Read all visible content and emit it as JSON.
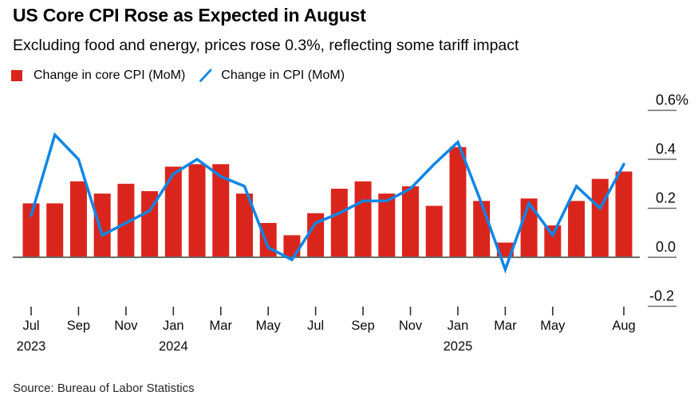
{
  "colors": {
    "bar_red": "#da251d",
    "line_blue": "#0e86e6",
    "zero_axis": "#6a6a6a",
    "y_tick": "#6a6a6a",
    "x_tick": "#2e2e2e",
    "label_text": "#0a0a0a"
  },
  "chart_data": {
    "type": "bar+line combo",
    "title": "US Core CPI Rose as Expected in August",
    "subtitle": "Excluding food and energy, prices rose 0.3%, reflecting some tariff impact",
    "source": "Source: Bureau of Labor Statistics",
    "unit": "% month-over-month",
    "grid": false,
    "legend_position": "top-left",
    "ylim": [
      -0.25,
      0.65
    ],
    "categories": [
      "Jul 2023",
      "Aug 2023",
      "Sep 2023",
      "Oct 2023",
      "Nov 2023",
      "Dec 2023",
      "Jan 2024",
      "Feb 2024",
      "Mar 2024",
      "Apr 2024",
      "May 2024",
      "Jun 2024",
      "Jul 2024",
      "Aug 2024",
      "Sep 2024",
      "Oct 2024",
      "Nov 2024",
      "Dec 2024",
      "Jan 2025",
      "Feb 2025",
      "Mar 2025",
      "Apr 2025",
      "May 2025",
      "Jun 2025",
      "Jul 2025",
      "Aug 2025"
    ],
    "series": [
      {
        "name": "Change in core CPI (MoM)",
        "type": "bar",
        "color": "#da251d",
        "values": [
          0.22,
          0.22,
          0.31,
          0.26,
          0.3,
          0.27,
          0.37,
          0.38,
          0.38,
          0.26,
          0.14,
          0.09,
          0.18,
          0.28,
          0.31,
          0.26,
          0.29,
          0.21,
          0.45,
          0.23,
          0.06,
          0.24,
          0.13,
          0.23,
          0.32,
          0.35
        ]
      },
      {
        "name": "Change in CPI (MoM)",
        "type": "line",
        "color": "#0e86e6",
        "values": [
          0.17,
          0.5,
          0.4,
          0.09,
          0.14,
          0.19,
          0.34,
          0.4,
          0.33,
          0.29,
          0.04,
          -0.01,
          0.14,
          0.18,
          0.23,
          0.23,
          0.28,
          0.38,
          0.47,
          0.22,
          -0.05,
          0.22,
          0.09,
          0.29,
          0.2,
          0.38
        ]
      }
    ],
    "y_ticks": [
      {
        "value": 0.6,
        "label": "0.6%"
      },
      {
        "value": 0.4,
        "label": "0.4"
      },
      {
        "value": 0.2,
        "label": "0.2"
      },
      {
        "value": 0.0,
        "label": "0.0"
      },
      {
        "value": -0.2,
        "label": "-0.2"
      }
    ],
    "x_ticks": [
      {
        "index": 0,
        "month": "Jul",
        "year": "2023"
      },
      {
        "index": 2,
        "month": "Sep"
      },
      {
        "index": 4,
        "month": "Nov"
      },
      {
        "index": 6,
        "month": "Jan",
        "year": "2024"
      },
      {
        "index": 8,
        "month": "Mar"
      },
      {
        "index": 10,
        "month": "May"
      },
      {
        "index": 12,
        "month": "Jul"
      },
      {
        "index": 14,
        "month": "Sep"
      },
      {
        "index": 16,
        "month": "Nov"
      },
      {
        "index": 18,
        "month": "Jan",
        "year": "2025"
      },
      {
        "index": 20,
        "month": "Mar"
      },
      {
        "index": 22,
        "month": "May"
      },
      {
        "index": 25,
        "month": "Aug"
      }
    ]
  }
}
